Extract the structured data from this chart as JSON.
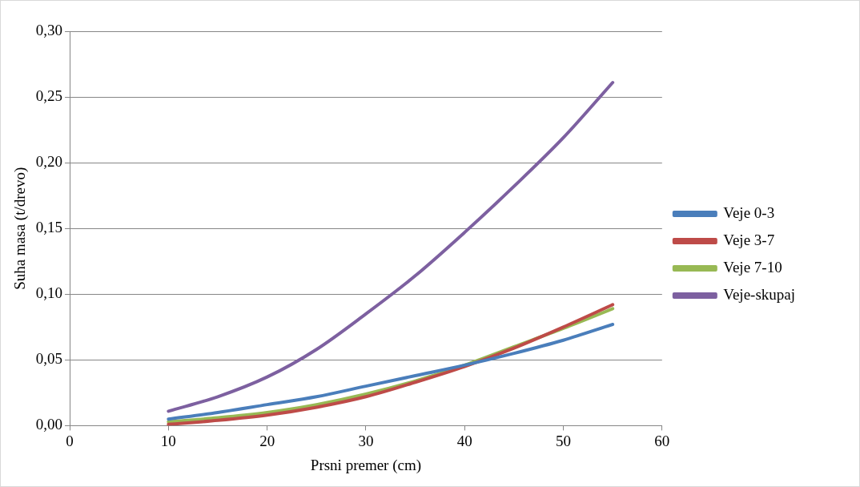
{
  "chart_data": {
    "type": "line",
    "xlabel": "Prsni premer (cm)",
    "ylabel": "Suha masa (t/drevo)",
    "xlim": [
      0,
      60
    ],
    "xticks": [
      0,
      10,
      20,
      30,
      40,
      50,
      60
    ],
    "ylim": [
      0,
      0.3
    ],
    "yticks": [
      {
        "value": 0,
        "label": "0,00"
      },
      {
        "value": 0.05,
        "label": "0,05"
      },
      {
        "value": 0.1,
        "label": "0,10"
      },
      {
        "value": 0.15,
        "label": "0,15"
      },
      {
        "value": 0.2,
        "label": "0,20"
      },
      {
        "value": 0.25,
        "label": "0,25"
      },
      {
        "value": 0.3,
        "label": "0,30"
      }
    ],
    "x": [
      10,
      15,
      20,
      25,
      30,
      35,
      40,
      45,
      50,
      55
    ],
    "series": [
      {
        "name": "Veje 0-3",
        "color": "#4a7ebb",
        "values": [
          0.005,
          0.01,
          0.016,
          0.022,
          0.03,
          0.038,
          0.046,
          0.055,
          0.065,
          0.077
        ]
      },
      {
        "name": "Veje 3-7",
        "color": "#be4b48",
        "values": [
          0.001,
          0.004,
          0.008,
          0.014,
          0.022,
          0.033,
          0.045,
          0.059,
          0.075,
          0.092
        ]
      },
      {
        "name": "Veje 7-10",
        "color": "#98b954",
        "values": [
          0.003,
          0.006,
          0.01,
          0.016,
          0.024,
          0.034,
          0.046,
          0.06,
          0.074,
          0.089
        ]
      },
      {
        "name": "Veje-skupaj",
        "color": "#7d60a0",
        "values": [
          0.011,
          0.022,
          0.037,
          0.058,
          0.085,
          0.114,
          0.147,
          0.182,
          0.219,
          0.261
        ]
      }
    ],
    "grid": "y",
    "legend": "right",
    "marker": "none",
    "line_style": "solid"
  }
}
